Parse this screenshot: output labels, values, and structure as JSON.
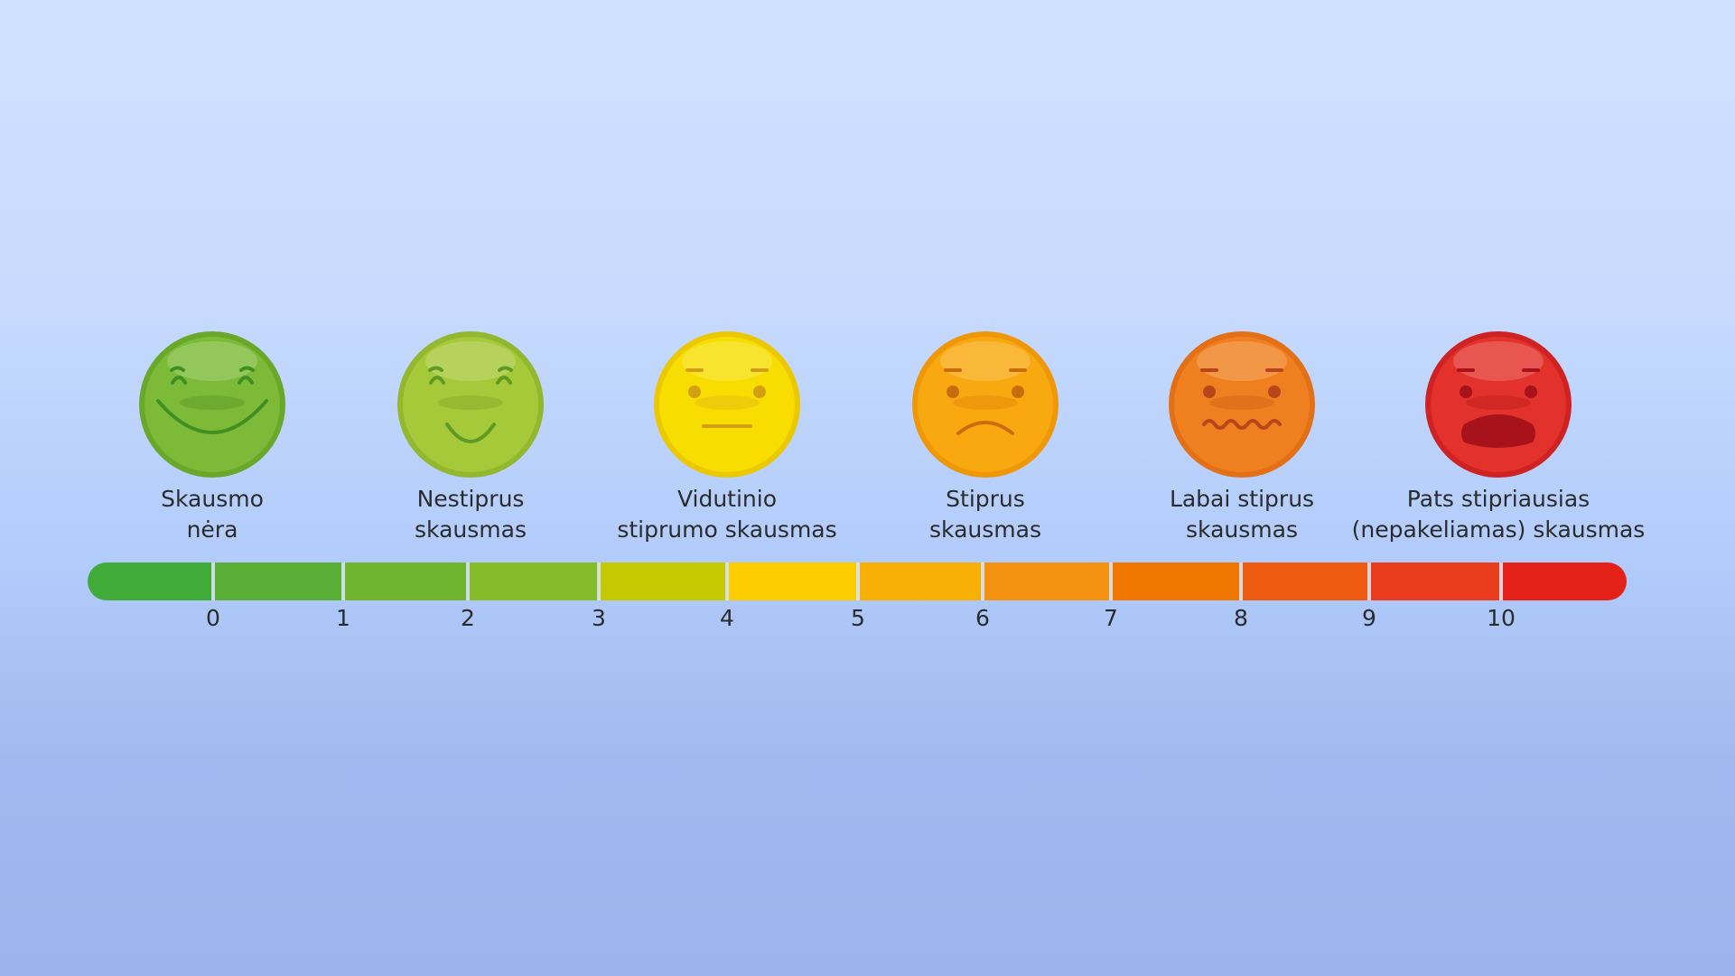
{
  "levels": [
    {
      "line1": "Skausmo",
      "line2": "nėra",
      "face": "big-smile-face-icon",
      "color": "#7cba37",
      "rim": "#6aa82c",
      "feature": "#3f8f23",
      "cheek": "#5e9f2a"
    },
    {
      "line1": "Nestiprus",
      "line2": "skausmas",
      "face": "smile-face-icon",
      "color": "#a6c93a",
      "rim": "#93b72e",
      "feature": "#5f9a22",
      "cheek": "#86ab2c"
    },
    {
      "line1": "Vidutinio",
      "line2": "stiprumo skausmas",
      "face": "neutral-face-icon",
      "color": "#f7de00",
      "rim": "#ecc800",
      "feature": "#d4a012",
      "cheek": "#e6bf12"
    },
    {
      "line1": "Stiprus",
      "line2": "skausmas",
      "face": "frown-face-icon",
      "color": "#f8a90f",
      "rim": "#ee9808",
      "feature": "#c96d0c",
      "cheek": "#e48d0a"
    },
    {
      "line1": "Labai stiprus",
      "line2": "skausmas",
      "face": "wavy-mouth-face-icon",
      "color": "#f0801f",
      "rim": "#e36f16",
      "feature": "#b8461a",
      "cheek": "#d8641a"
    },
    {
      "line1": "Pats stipriausias",
      "line2": "(nepakeliamas) skausmas",
      "face": "grimace-face-icon",
      "color": "#e3312b",
      "rim": "#cf2222",
      "feature": "#a8121b",
      "cheek": "#c4201f"
    }
  ],
  "scale": {
    "ticks": [
      "0",
      "1",
      "2",
      "3",
      "4",
      "5",
      "6",
      "7",
      "8",
      "9",
      "10"
    ],
    "segment_colors": [
      "#41ab39",
      "#5ab036",
      "#70b52f",
      "#86bb2a",
      "#c4c900",
      "#fecd00",
      "#f7b003",
      "#f49311",
      "#ef7700",
      "#ec5b0f",
      "#e83c1c",
      "#e42119"
    ]
  }
}
